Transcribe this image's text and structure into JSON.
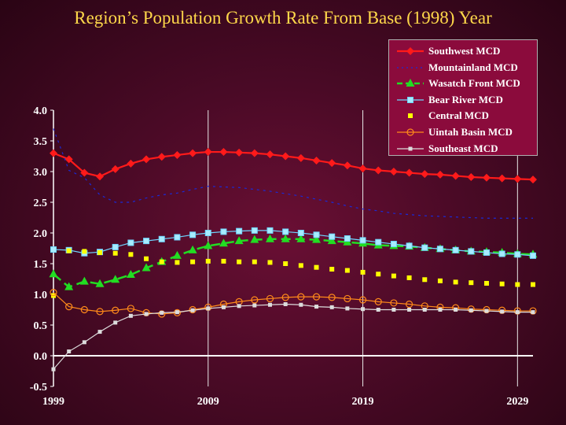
{
  "title": "Region’s Population Growth Rate From Base (1998) Year",
  "chart_data": {
    "type": "line",
    "title": "Region’s Population Growth Rate From Base (1998) Year",
    "xlabel": "",
    "ylabel": "",
    "xlim": [
      1999,
      2030
    ],
    "ylim": [
      -0.5,
      4.0
    ],
    "x_ticks": [
      "1999",
      "2009",
      "2019",
      "2029"
    ],
    "y_ticks": [
      "4.0",
      "3.5",
      "3.0",
      "2.5",
      "2.0",
      "1.5",
      "1.0",
      "0.5",
      "0.0",
      "-0.5"
    ],
    "grid": "vertical lines at labeled years",
    "legend_position": "top-right",
    "x": [
      1999,
      2000,
      2001,
      2002,
      2003,
      2004,
      2005,
      2006,
      2007,
      2008,
      2009,
      2010,
      2011,
      2012,
      2013,
      2014,
      2015,
      2016,
      2017,
      2018,
      2019,
      2020,
      2021,
      2022,
      2023,
      2024,
      2025,
      2026,
      2027,
      2028,
      2029,
      2030
    ],
    "series": [
      {
        "name": "Southwest MCD",
        "color": "#ff1a1a",
        "marker": "diamond",
        "dashed": false,
        "values": [
          3.3,
          3.2,
          2.98,
          2.92,
          3.04,
          3.13,
          3.2,
          3.24,
          3.27,
          3.3,
          3.32,
          3.32,
          3.31,
          3.3,
          3.28,
          3.25,
          3.22,
          3.18,
          3.14,
          3.1,
          3.05,
          3.02,
          3.0,
          2.98,
          2.96,
          2.95,
          2.93,
          2.91,
          2.9,
          2.89,
          2.88,
          2.87
        ]
      },
      {
        "name": "Mountainland MCD",
        "color": "#1a2ad8",
        "marker": "dot",
        "dashed": true,
        "values": [
          3.7,
          3.02,
          2.9,
          2.62,
          2.5,
          2.5,
          2.57,
          2.62,
          2.65,
          2.71,
          2.76,
          2.75,
          2.74,
          2.71,
          2.68,
          2.64,
          2.6,
          2.55,
          2.5,
          2.44,
          2.39,
          2.36,
          2.32,
          2.3,
          2.28,
          2.27,
          2.26,
          2.25,
          2.24,
          2.24,
          2.24,
          2.24
        ]
      },
      {
        "name": "Wasatch Front MCD",
        "color": "#22dd22",
        "marker": "triangle",
        "dashed": true,
        "values": [
          1.33,
          1.12,
          1.21,
          1.17,
          1.24,
          1.32,
          1.43,
          1.53,
          1.63,
          1.72,
          1.79,
          1.83,
          1.87,
          1.89,
          1.9,
          1.9,
          1.9,
          1.89,
          1.87,
          1.85,
          1.83,
          1.8,
          1.79,
          1.78,
          1.76,
          1.74,
          1.72,
          1.7,
          1.69,
          1.68,
          1.66,
          1.65
        ]
      },
      {
        "name": "Bear River MCD",
        "color": "#6ed6ff",
        "marker": "square-open",
        "dashed": false,
        "values": [
          1.73,
          1.72,
          1.67,
          1.69,
          1.77,
          1.84,
          1.87,
          1.9,
          1.93,
          1.97,
          2.0,
          2.02,
          2.03,
          2.04,
          2.04,
          2.02,
          2.0,
          1.97,
          1.94,
          1.91,
          1.88,
          1.85,
          1.82,
          1.79,
          1.76,
          1.74,
          1.72,
          1.7,
          1.68,
          1.66,
          1.65,
          1.63
        ]
      },
      {
        "name": "Central MCD",
        "color": "#ffff00",
        "marker": "square",
        "dashed": false,
        "values": [
          0.98,
          1.71,
          1.7,
          1.68,
          1.67,
          1.65,
          1.58,
          1.53,
          1.52,
          1.53,
          1.54,
          1.54,
          1.53,
          1.53,
          1.52,
          1.5,
          1.47,
          1.44,
          1.41,
          1.39,
          1.36,
          1.33,
          1.3,
          1.27,
          1.24,
          1.22,
          1.2,
          1.19,
          1.18,
          1.17,
          1.16,
          1.16
        ]
      },
      {
        "name": "Uintah Basin MCD",
        "color": "#ff8a1a",
        "marker": "circle-open",
        "dashed": false,
        "values": [
          1.03,
          0.8,
          0.75,
          0.72,
          0.74,
          0.77,
          0.7,
          0.68,
          0.7,
          0.75,
          0.79,
          0.84,
          0.88,
          0.91,
          0.93,
          0.95,
          0.96,
          0.96,
          0.95,
          0.93,
          0.91,
          0.88,
          0.86,
          0.84,
          0.81,
          0.79,
          0.78,
          0.76,
          0.75,
          0.74,
          0.73,
          0.73
        ]
      },
      {
        "name": "Southeast MCD",
        "color": "#dcdcdc",
        "marker": "square-small",
        "dashed": false,
        "values": [
          -0.22,
          0.07,
          0.22,
          0.39,
          0.54,
          0.65,
          0.68,
          0.7,
          0.71,
          0.74,
          0.77,
          0.79,
          0.81,
          0.82,
          0.83,
          0.84,
          0.83,
          0.8,
          0.79,
          0.77,
          0.76,
          0.75,
          0.75,
          0.75,
          0.75,
          0.75,
          0.75,
          0.74,
          0.73,
          0.72,
          0.71,
          0.71
        ]
      }
    ]
  }
}
